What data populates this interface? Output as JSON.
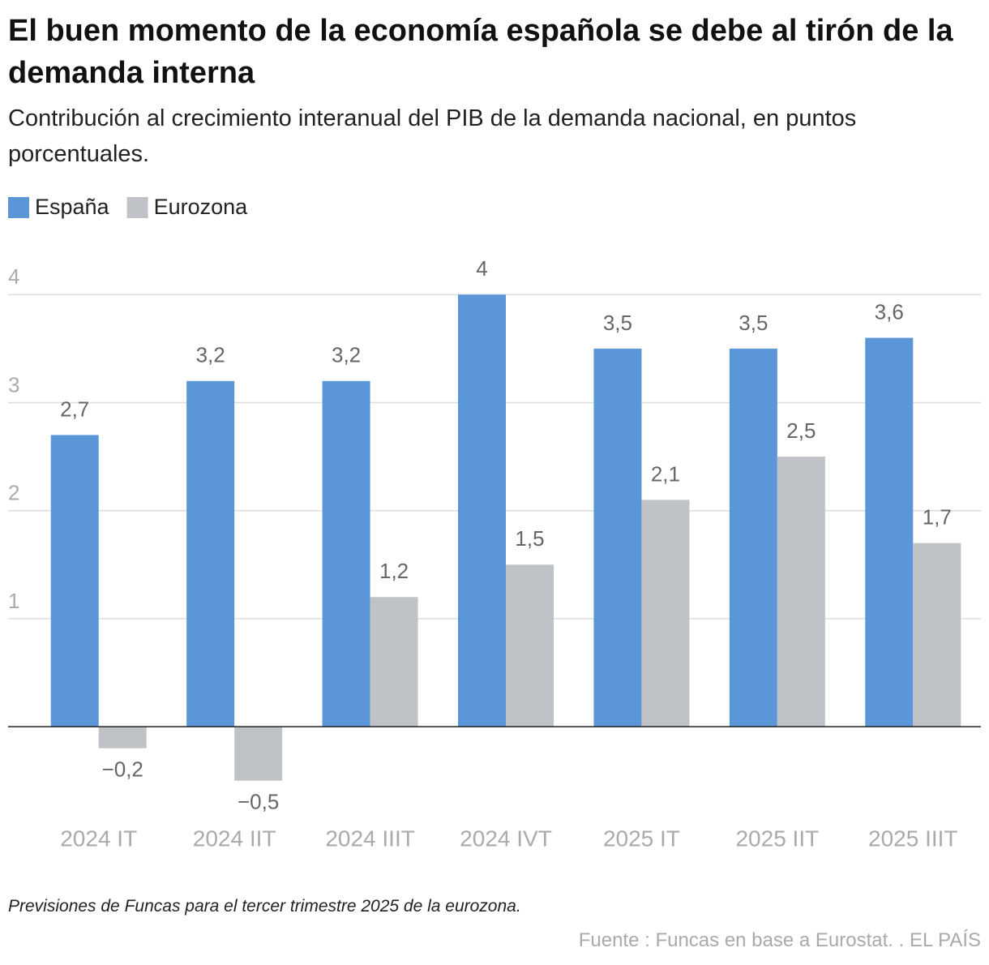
{
  "chart_data": {
    "type": "bar",
    "title": "El buen momento de la economía española se debe al tirón de la demanda interna",
    "subtitle": "Contribución al crecimiento interanual del PIB de la demanda nacional, en puntos porcentuales.",
    "categories": [
      "2024 IT",
      "2024 IIT",
      "2024 IIIT",
      "2024 IVT",
      "2025 IT",
      "2025 IIT",
      "2025 IIIT"
    ],
    "series": [
      {
        "name": "España",
        "color": "#5b96d9",
        "values": [
          2.7,
          3.2,
          3.2,
          4,
          3.5,
          3.5,
          3.6
        ],
        "value_labels": [
          "2,7",
          "3,2",
          "3,2",
          "4",
          "3,5",
          "3,5",
          "3,6"
        ]
      },
      {
        "name": "Eurozona",
        "color": "#bfc3c7",
        "values": [
          -0.2,
          -0.5,
          1.2,
          1.5,
          2.1,
          2.5,
          1.7
        ],
        "value_labels": [
          "−0,2",
          "−0,5",
          "1,2",
          "1,5",
          "2,1",
          "2,5",
          "1,7"
        ]
      }
    ],
    "ylim": [
      -0.75,
      4.25
    ],
    "yticks": [
      1,
      2,
      3,
      4
    ],
    "grid": true,
    "legend": "top-left",
    "note": "Previsiones de Funcas para el tercer trimestre 2025 de la eurozona.",
    "source": "Fuente : Funcas en base a Eurostat. . EL PAÍS"
  }
}
